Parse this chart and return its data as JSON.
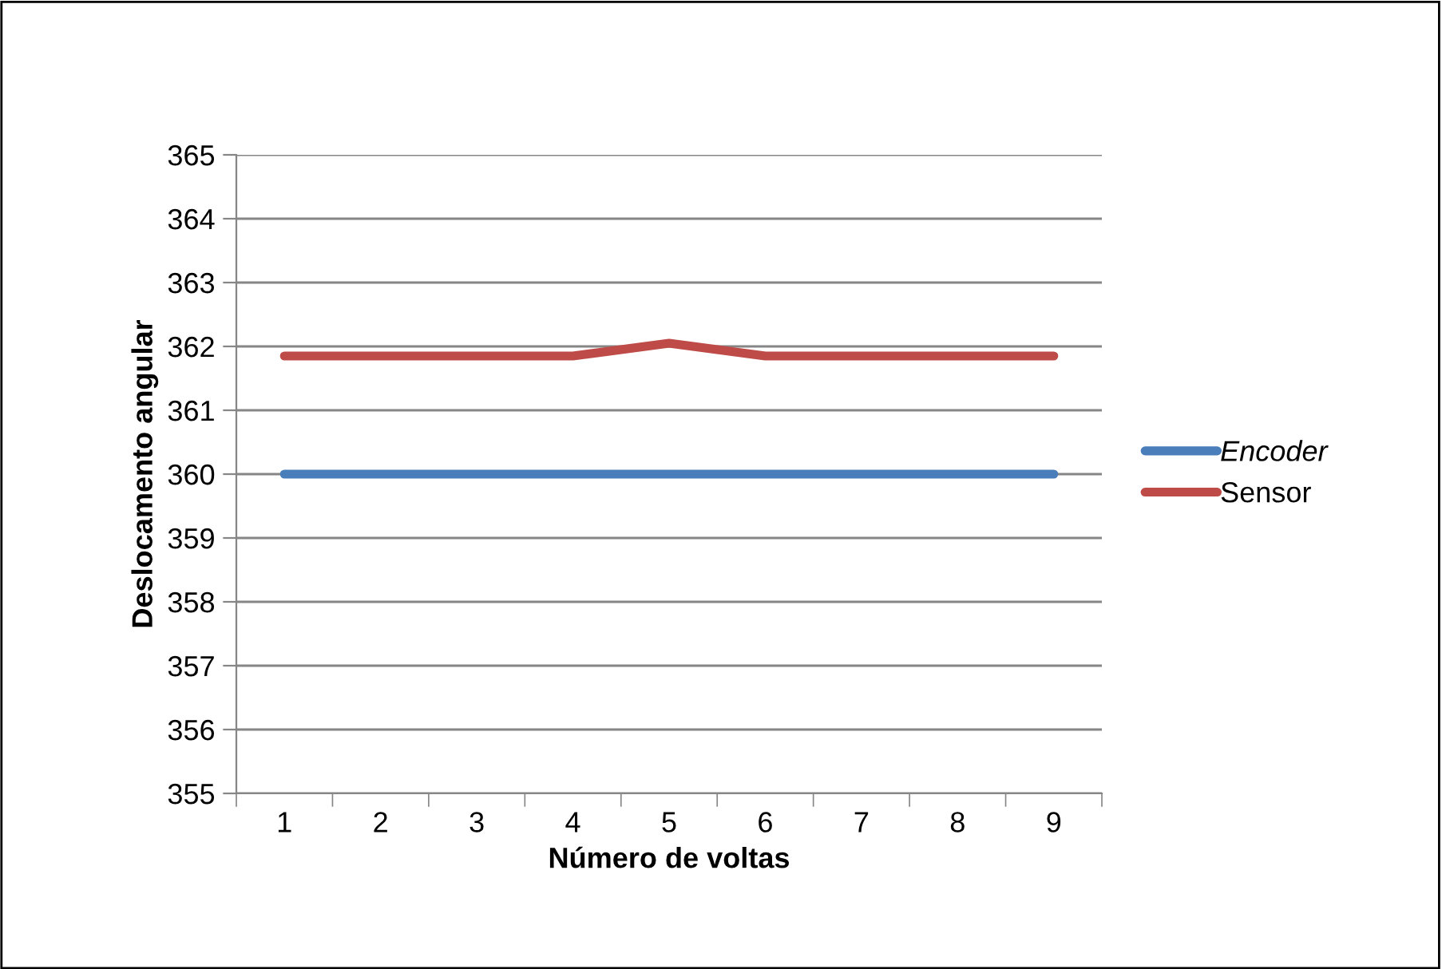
{
  "chart_data": {
    "type": "line",
    "xlabel": "Número de voltas",
    "ylabel": "Deslocamento angular",
    "categories": [
      "1",
      "2",
      "3",
      "4",
      "5",
      "6",
      "7",
      "8",
      "9"
    ],
    "series": [
      {
        "name": "Encoder",
        "color": "#4a7ebb",
        "values": [
          360,
          360,
          360,
          360,
          360,
          360,
          360,
          360,
          360
        ]
      },
      {
        "name": "Sensor",
        "color": "#be4b48",
        "values": [
          361.85,
          361.85,
          361.85,
          361.85,
          362.05,
          361.85,
          361.85,
          361.85,
          361.85
        ]
      }
    ],
    "ylim": [
      355,
      365
    ],
    "yticks": [
      355,
      356,
      357,
      358,
      359,
      360,
      361,
      362,
      363,
      364,
      365
    ],
    "grid": "y",
    "legend": "right",
    "marker": "none",
    "line_style": "solid"
  }
}
